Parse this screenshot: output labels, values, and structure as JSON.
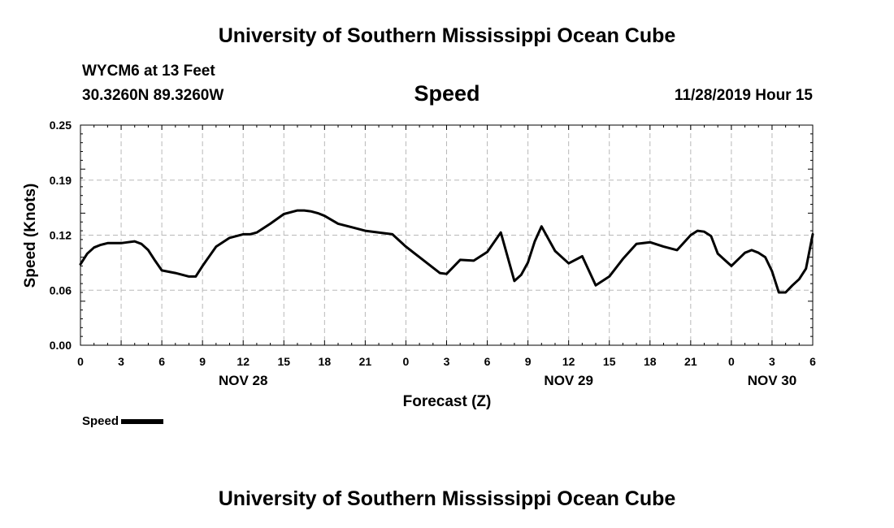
{
  "header": {
    "title": "University of Southern Mississippi Ocean Cube",
    "station": "WYCM6 at 13 Feet",
    "coords": "30.3260N 89.3260W",
    "date": "11/28/2019 Hour 15"
  },
  "footer": {
    "title": "University of Southern Mississippi Ocean Cube"
  },
  "legend": {
    "label": "Speed"
  },
  "colors": {
    "line": "#000000",
    "grid": "#b8b8b8",
    "background": "#ffffff"
  },
  "chart_data": {
    "type": "line",
    "title": "Speed",
    "xlabel": "Forecast (Z)",
    "ylabel": "Speed (Knots)",
    "xlim": [
      0,
      54
    ],
    "ylim": [
      0.0,
      0.25
    ],
    "grid": true,
    "legend_position": "bottom-left",
    "y_ticks": [
      "0.00",
      "0.06",
      "0.12",
      "0.19",
      "0.25"
    ],
    "y_tick_values": [
      0.0,
      0.0625,
      0.125,
      0.1875,
      0.25
    ],
    "x_ticks": [
      "0",
      "3",
      "6",
      "9",
      "12",
      "15",
      "18",
      "21",
      "0",
      "3",
      "6",
      "9",
      "12",
      "15",
      "18",
      "21",
      "0",
      "3",
      "6"
    ],
    "x_tick_values": [
      0,
      3,
      6,
      9,
      12,
      15,
      18,
      21,
      24,
      27,
      30,
      33,
      36,
      39,
      42,
      45,
      48,
      51,
      54
    ],
    "day_labels": [
      {
        "label": "NOV 28",
        "x": 12
      },
      {
        "label": "NOV 29",
        "x": 36
      },
      {
        "label": "NOV 30",
        "x": 51
      }
    ],
    "series": [
      {
        "name": "Speed",
        "x": [
          0,
          0.5,
          1,
          1.5,
          2,
          2.5,
          3,
          3.5,
          4,
          4.5,
          5,
          5.5,
          6,
          7,
          8,
          8.5,
          9,
          10,
          11,
          12,
          12.5,
          13,
          14,
          15,
          16,
          16.5,
          17,
          17.5,
          18,
          19,
          20,
          21,
          22,
          23,
          24,
          25,
          26,
          26.5,
          27,
          28,
          29,
          30,
          31,
          32,
          32.5,
          33,
          33.5,
          34,
          34.5,
          35,
          36,
          37,
          38,
          39,
          40,
          41,
          42,
          43,
          44,
          45,
          45.5,
          46,
          46.5,
          47,
          48,
          49,
          49.5,
          50,
          50.5,
          51,
          51.5,
          52,
          52.5,
          53,
          53.5,
          54
        ],
        "y": [
          0.092,
          0.104,
          0.111,
          0.114,
          0.116,
          0.116,
          0.116,
          0.117,
          0.118,
          0.115,
          0.108,
          0.096,
          0.085,
          0.082,
          0.078,
          0.078,
          0.09,
          0.112,
          0.122,
          0.126,
          0.126,
          0.128,
          0.138,
          0.149,
          0.153,
          0.153,
          0.152,
          0.15,
          0.147,
          0.138,
          0.134,
          0.13,
          0.128,
          0.126,
          0.112,
          0.1,
          0.088,
          0.082,
          0.081,
          0.097,
          0.096,
          0.106,
          0.128,
          0.073,
          0.08,
          0.094,
          0.118,
          0.135,
          0.121,
          0.107,
          0.093,
          0.101,
          0.068,
          0.078,
          0.098,
          0.115,
          0.117,
          0.112,
          0.108,
          0.125,
          0.13,
          0.129,
          0.124,
          0.104,
          0.09,
          0.105,
          0.108,
          0.105,
          0.1,
          0.084,
          0.06,
          0.06,
          0.068,
          0.075,
          0.087,
          0.126
        ]
      }
    ]
  }
}
